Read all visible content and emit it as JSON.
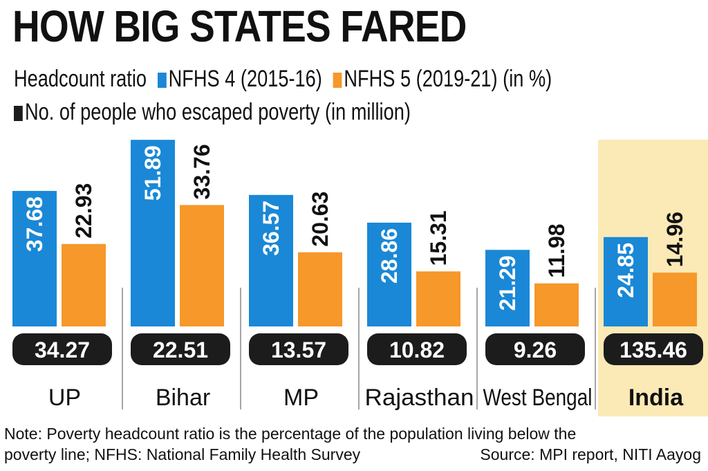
{
  "title": "HOW BIG STATES FARED",
  "legend": {
    "lead": "Headcount ratio",
    "nfhs4": "NFHS 4 (2015-16)",
    "nfhs5": "NFHS 5 (2019-21)",
    "unit": "(in %)",
    "escaped": "No. of people who escaped poverty (in million)"
  },
  "colors": {
    "nfhs4": "#1a88d6",
    "nfhs5": "#f6982a",
    "escaped": "#1c1c1c",
    "highlight": "#fbe9b6"
  },
  "chart_data": {
    "type": "bar",
    "categories": [
      "UP",
      "Bihar",
      "MP",
      "Rajasthan",
      "West Bengal",
      "India"
    ],
    "series": [
      {
        "name": "NFHS 4 (2015-16)",
        "values": [
          37.68,
          51.89,
          36.57,
          28.86,
          21.29,
          24.85
        ]
      },
      {
        "name": "NFHS 5 (2019-21)",
        "values": [
          22.93,
          33.76,
          20.63,
          15.31,
          11.98,
          14.96
        ]
      }
    ],
    "escaped_poverty_million": [
      34.27,
      22.51,
      13.57,
      10.82,
      9.26,
      135.46
    ],
    "highlighted_category": "India",
    "unit": "%"
  },
  "footer": {
    "note": "Note: Poverty headcount ratio is the percentage of the population living below the poverty line; NFHS: National Family Health Survey",
    "note_line1": "Note: Poverty headcount ratio is the percentage of the population living below the",
    "note_line2": "poverty line; NFHS: National Family Health Survey",
    "source": "Source: MPI report, NITI Aayog"
  }
}
